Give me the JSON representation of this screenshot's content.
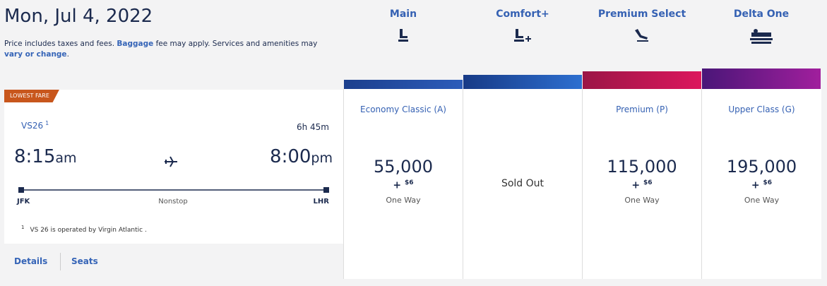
{
  "header": {
    "date": "Mon, Jul 4, 2022",
    "note_start": "Price includes taxes and fees.",
    "note_link_1": "Baggage",
    "note_middle": "fee may apply. Services and amenities may",
    "note_link_2": "vary or change",
    "note_end": "."
  },
  "cabins": [
    {
      "name": "Main"
    },
    {
      "name": "Comfort+"
    },
    {
      "name": "Premium Select"
    },
    {
      "name": "Delta One"
    }
  ],
  "flight": {
    "badge": "LOWEST FARE",
    "flight_number": "VS26",
    "footnote_mark": "1",
    "duration": "6h 45m",
    "depart_time": "8:15",
    "depart_suffix": "am",
    "arrive_time": "8:00",
    "arrive_suffix": "pm",
    "origin": "JFK",
    "stops": "Nonstop",
    "destination": "LHR",
    "footnote": "VS 26 is operated by Virgin Atlantic .",
    "links": [
      "Details",
      "Seats"
    ]
  },
  "fares": [
    {
      "fare_class": "Economy Classic (A)",
      "miles": "55,000",
      "plus": "+",
      "fee": "$6",
      "trip": "One Way"
    },
    {
      "status": "Sold Out"
    },
    {
      "fare_class": "Premium (P)",
      "miles": "115,000",
      "plus": "+",
      "fee": "$6",
      "trip": "One Way"
    },
    {
      "fare_class": "Upper Class (G)",
      "miles": "195,000",
      "plus": "+",
      "fee": "$6",
      "trip": "One Way"
    }
  ]
}
